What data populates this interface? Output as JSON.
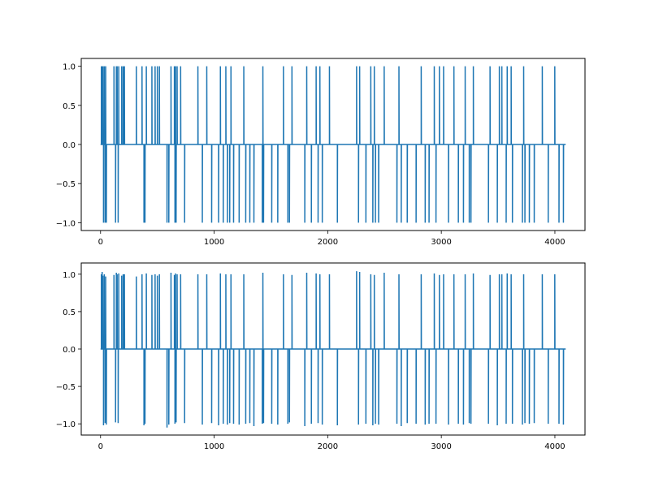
{
  "chart_data": [
    {
      "type": "line",
      "title": "",
      "xlabel": "",
      "ylabel": "",
      "xlim": [
        -170,
        4265
      ],
      "ylim": [
        -1.1,
        1.1
      ],
      "xticks": [
        0,
        1000,
        2000,
        3000,
        4000
      ],
      "xtick_labels": [
        "0",
        "1000",
        "2000",
        "3000",
        "4000"
      ],
      "yticks": [
        -1.0,
        -0.5,
        0.0,
        0.5,
        1.0
      ],
      "ytick_labels": [
        "−1.0",
        "−0.5",
        "0.0",
        "0.5",
        "1.0"
      ],
      "grid": false,
      "color": "#1f77b4",
      "series": [
        {
          "x_range": [
            0,
            4095
          ],
          "baseline": 0,
          "pulses": [
            [
              7,
              1
            ],
            [
              14,
              1
            ],
            [
              21,
              1
            ],
            [
              26,
              -1
            ],
            [
              33,
              1
            ],
            [
              40,
              -1
            ],
            [
              45,
              1
            ],
            [
              51,
              -1
            ],
            [
              118,
              1
            ],
            [
              132,
              -1
            ],
            [
              139,
              1
            ],
            [
              146,
              1
            ],
            [
              155,
              -1
            ],
            [
              160,
              1
            ],
            [
              186,
              1
            ],
            [
              199,
              1
            ],
            [
              210,
              1
            ],
            [
              315,
              1
            ],
            [
              365,
              1
            ],
            [
              382,
              -1
            ],
            [
              391,
              -1
            ],
            [
              403,
              1
            ],
            [
              452,
              1
            ],
            [
              480,
              1
            ],
            [
              500,
              1
            ],
            [
              518,
              1
            ],
            [
              585,
              -1
            ],
            [
              601,
              -1
            ],
            [
              620,
              1
            ],
            [
              650,
              1
            ],
            [
              655,
              -1
            ],
            [
              660,
              1
            ],
            [
              665,
              -1
            ],
            [
              674,
              1
            ],
            [
              705,
              1
            ],
            [
              740,
              -1
            ],
            [
              857,
              1
            ],
            [
              896,
              -1
            ],
            [
              935,
              1
            ],
            [
              978,
              -1
            ],
            [
              1039,
              -1
            ],
            [
              1055,
              1
            ],
            [
              1080,
              -1
            ],
            [
              1103,
              1
            ],
            [
              1117,
              -1
            ],
            [
              1137,
              -1
            ],
            [
              1148,
              1
            ],
            [
              1171,
              -1
            ],
            [
              1220,
              -1
            ],
            [
              1261,
              1
            ],
            [
              1278,
              -1
            ],
            [
              1314,
              -1
            ],
            [
              1350,
              -1
            ],
            [
              1424,
              -1
            ],
            [
              1429,
              1
            ],
            [
              1435,
              -1
            ],
            [
              1507,
              -1
            ],
            [
              1560,
              -1
            ],
            [
              1610,
              1
            ],
            [
              1649,
              -1
            ],
            [
              1663,
              -1
            ],
            [
              1685,
              1
            ],
            [
              1798,
              -1
            ],
            [
              1815,
              1
            ],
            [
              1856,
              -1
            ],
            [
              1898,
              1
            ],
            [
              1915,
              -1
            ],
            [
              1931,
              1
            ],
            [
              1952,
              -1
            ],
            [
              2015,
              1
            ],
            [
              2085,
              -1
            ],
            [
              2254,
              1
            ],
            [
              2271,
              -1
            ],
            [
              2281,
              1
            ],
            [
              2336,
              -1
            ],
            [
              2379,
              1
            ],
            [
              2397,
              -1
            ],
            [
              2410,
              1
            ],
            [
              2420,
              -1
            ],
            [
              2448,
              -1
            ],
            [
              2497,
              1
            ],
            [
              2609,
              -1
            ],
            [
              2627,
              1
            ],
            [
              2647,
              -1
            ],
            [
              2700,
              -1
            ],
            [
              2778,
              -1
            ],
            [
              2823,
              1
            ],
            [
              2858,
              -1
            ],
            [
              2892,
              -1
            ],
            [
              2938,
              1
            ],
            [
              2953,
              -1
            ],
            [
              2983,
              1
            ],
            [
              3020,
              1
            ],
            [
              3063,
              -1
            ],
            [
              3111,
              1
            ],
            [
              3150,
              -1
            ],
            [
              3195,
              -1
            ],
            [
              3210,
              1
            ],
            [
              3246,
              -1
            ],
            [
              3261,
              -1
            ],
            [
              3282,
              1
            ],
            [
              3415,
              -1
            ],
            [
              3429,
              1
            ],
            [
              3493,
              -1
            ],
            [
              3511,
              1
            ],
            [
              3533,
              1
            ],
            [
              3571,
              -1
            ],
            [
              3580,
              1
            ],
            [
              3615,
              1
            ],
            [
              3626,
              -1
            ],
            [
              3714,
              -1
            ],
            [
              3725,
              1
            ],
            [
              3736,
              -1
            ],
            [
              3775,
              -1
            ],
            [
              3818,
              -1
            ],
            [
              3889,
              1
            ],
            [
              3941,
              -1
            ],
            [
              3999,
              1
            ],
            [
              4036,
              -1
            ],
            [
              4075,
              -1
            ]
          ],
          "overshoot_max": 1.04,
          "overshoot_min": -1.05
        }
      ]
    },
    {
      "type": "line",
      "title": "",
      "xlabel": "",
      "ylabel": "",
      "xlim": [
        -170,
        4265
      ],
      "ylim": [
        -1.15,
        1.15
      ],
      "xticks": [
        0,
        1000,
        2000,
        3000,
        4000
      ],
      "xtick_labels": [
        "0",
        "1000",
        "2000",
        "3000",
        "4000"
      ],
      "yticks": [
        -1.0,
        -0.5,
        0.0,
        0.5,
        1.0
      ],
      "ytick_labels": [
        "−1.0",
        "−0.5",
        "0.0",
        "0.5",
        "1.0"
      ],
      "grid": false,
      "color": "#1f77b4",
      "series": [
        {
          "x_range": [
            0,
            4095
          ],
          "baseline": 0,
          "pulses": [
            [
              7,
              1.0
            ],
            [
              14,
              1.03
            ],
            [
              21,
              0.98
            ],
            [
              26,
              -1.02
            ],
            [
              33,
              1.0
            ],
            [
              40,
              -0.99
            ],
            [
              45,
              0.97
            ],
            [
              51,
              -1.01
            ],
            [
              118,
              0.99
            ],
            [
              132,
              -0.98
            ],
            [
              139,
              1.02
            ],
            [
              146,
              1.0
            ],
            [
              155,
              -0.99
            ],
            [
              160,
              1.01
            ],
            [
              186,
              0.98
            ],
            [
              199,
              1.0
            ],
            [
              210,
              1.0
            ],
            [
              315,
              0.97
            ],
            [
              365,
              1.0
            ],
            [
              382,
              -1.02
            ],
            [
              391,
              -1.0
            ],
            [
              403,
              1.01
            ],
            [
              452,
              0.99
            ],
            [
              480,
              1.0
            ],
            [
              500,
              0.98
            ],
            [
              518,
              1.0
            ],
            [
              585,
              -1.05
            ],
            [
              601,
              -1.01
            ],
            [
              620,
              1.02
            ],
            [
              650,
              0.99
            ],
            [
              655,
              -1.0
            ],
            [
              660,
              1.01
            ],
            [
              665,
              -0.98
            ],
            [
              674,
              1.0
            ],
            [
              705,
              1.0
            ],
            [
              740,
              -0.99
            ],
            [
              857,
              1.0
            ],
            [
              896,
              -1.01
            ],
            [
              935,
              1.0
            ],
            [
              978,
              -0.99
            ],
            [
              1039,
              -1.02
            ],
            [
              1055,
              1.01
            ],
            [
              1080,
              -1.0
            ],
            [
              1103,
              1.0
            ],
            [
              1117,
              -1.01
            ],
            [
              1137,
              -0.99
            ],
            [
              1148,
              1.0
            ],
            [
              1171,
              -1.0
            ],
            [
              1220,
              -1.01
            ],
            [
              1261,
              1.0
            ],
            [
              1278,
              -1.0
            ],
            [
              1314,
              -0.99
            ],
            [
              1350,
              -1.03
            ],
            [
              1424,
              -1.0
            ],
            [
              1429,
              1.02
            ],
            [
              1435,
              -0.99
            ],
            [
              1507,
              -1.0
            ],
            [
              1560,
              -1.01
            ],
            [
              1610,
              1.0
            ],
            [
              1649,
              -1.0
            ],
            [
              1663,
              -0.98
            ],
            [
              1685,
              0.99
            ],
            [
              1798,
              -1.03
            ],
            [
              1815,
              1.02
            ],
            [
              1856,
              -1.0
            ],
            [
              1898,
              1.01
            ],
            [
              1915,
              -0.99
            ],
            [
              1931,
              1.0
            ],
            [
              1952,
              -1.01
            ],
            [
              2015,
              1.0
            ],
            [
              2085,
              -1.02
            ],
            [
              2254,
              1.04
            ],
            [
              2271,
              -1.01
            ],
            [
              2281,
              1.03
            ],
            [
              2336,
              -1.0
            ],
            [
              2379,
              1.0
            ],
            [
              2397,
              -1.02
            ],
            [
              2410,
              0.99
            ],
            [
              2420,
              -1.0
            ],
            [
              2448,
              -1.01
            ],
            [
              2497,
              1.02
            ],
            [
              2609,
              -1.0
            ],
            [
              2627,
              1.0
            ],
            [
              2647,
              -1.03
            ],
            [
              2700,
              -0.99
            ],
            [
              2778,
              -1.0
            ],
            [
              2823,
              1.0
            ],
            [
              2858,
              -1.01
            ],
            [
              2892,
              -1.0
            ],
            [
              2938,
              1.01
            ],
            [
              2953,
              -1.0
            ],
            [
              2983,
              0.99
            ],
            [
              3020,
              1.0
            ],
            [
              3063,
              -1.01
            ],
            [
              3111,
              1.0
            ],
            [
              3150,
              -1.0
            ],
            [
              3195,
              -1.01
            ],
            [
              3210,
              1.0
            ],
            [
              3246,
              -0.99
            ],
            [
              3261,
              -1.0
            ],
            [
              3282,
              1.01
            ],
            [
              3415,
              -1.0
            ],
            [
              3429,
              0.99
            ],
            [
              3493,
              -1.02
            ],
            [
              3511,
              1.0
            ],
            [
              3533,
              1.0
            ],
            [
              3571,
              -1.0
            ],
            [
              3580,
              1.01
            ],
            [
              3615,
              1.0
            ],
            [
              3626,
              -1.0
            ],
            [
              3714,
              -1.01
            ],
            [
              3725,
              1.0
            ],
            [
              3736,
              -0.99
            ],
            [
              3775,
              -1.0
            ],
            [
              3818,
              -0.99
            ],
            [
              3889,
              1.0
            ],
            [
              3941,
              -1.0
            ],
            [
              3999,
              1.0
            ],
            [
              4036,
              -1.0
            ],
            [
              4075,
              -1.01
            ]
          ]
        }
      ]
    }
  ]
}
